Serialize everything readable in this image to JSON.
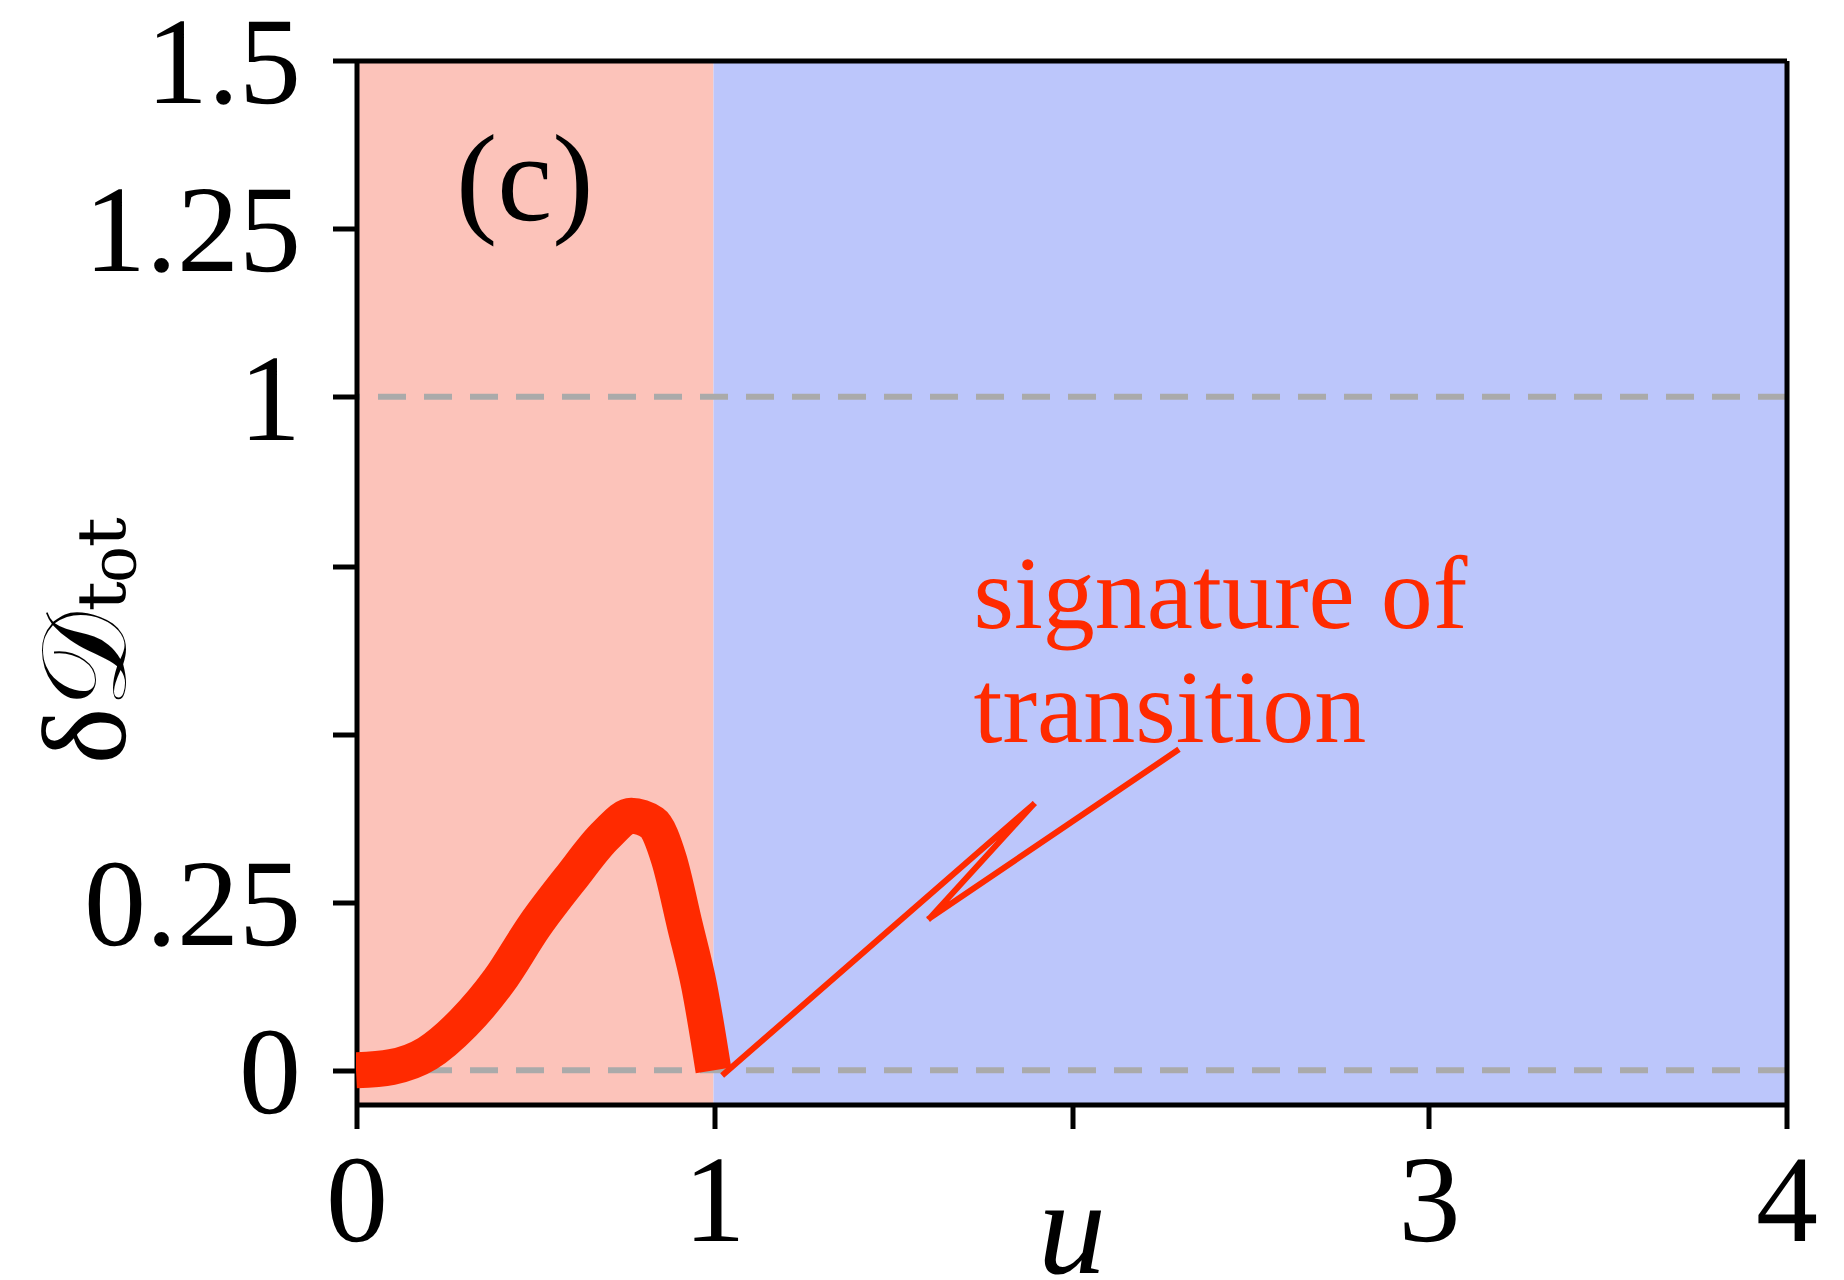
{
  "chart_data": {
    "type": "line",
    "xlabel": "u",
    "ylabel": "δ𝒟ₜₒₜ",
    "annotations": [
      "(c)",
      "signature of transition"
    ],
    "x": [
      0,
      0.1,
      0.2,
      0.3,
      0.4,
      0.5,
      0.6,
      0.7,
      0.77,
      0.83,
      0.875,
      0.92,
      0.96,
      1
    ],
    "series": [
      {
        "color": "#ff2a00",
        "values": [
          0,
          0.005,
          0.025,
          0.07,
          0.133,
          0.215,
          0.285,
          0.35,
          0.378,
          0.367,
          0.314,
          0.215,
          0.125,
          0
        ]
      }
    ],
    "xlim": [
      0,
      4
    ],
    "xticks": [
      0,
      1,
      {
        "value": 2,
        "label": null
      },
      3,
      4
    ],
    "ylim": [
      -0.05,
      1.5
    ],
    "yticks": [
      0,
      0.25,
      {
        "value": 0.5,
        "label": null
      },
      {
        "value": 0.75,
        "label": null
      },
      1,
      1.25,
      1.5
    ],
    "ref_lines": [
      {
        "axis": "y",
        "value": 0,
        "color": "#aaaaaa",
        "line_style": "dashed"
      },
      {
        "axis": "y",
        "value": 1,
        "color": "#aaaaaa",
        "line_style": "dashed"
      }
    ],
    "bands": [
      {
        "axis": "x",
        "from": 0,
        "to": 1,
        "color": "#fcc3ba"
      },
      {
        "axis": "x",
        "from": 1,
        "to": 4,
        "color": "#bcc6fb"
      }
    ],
    "line_style": "solid"
  }
}
